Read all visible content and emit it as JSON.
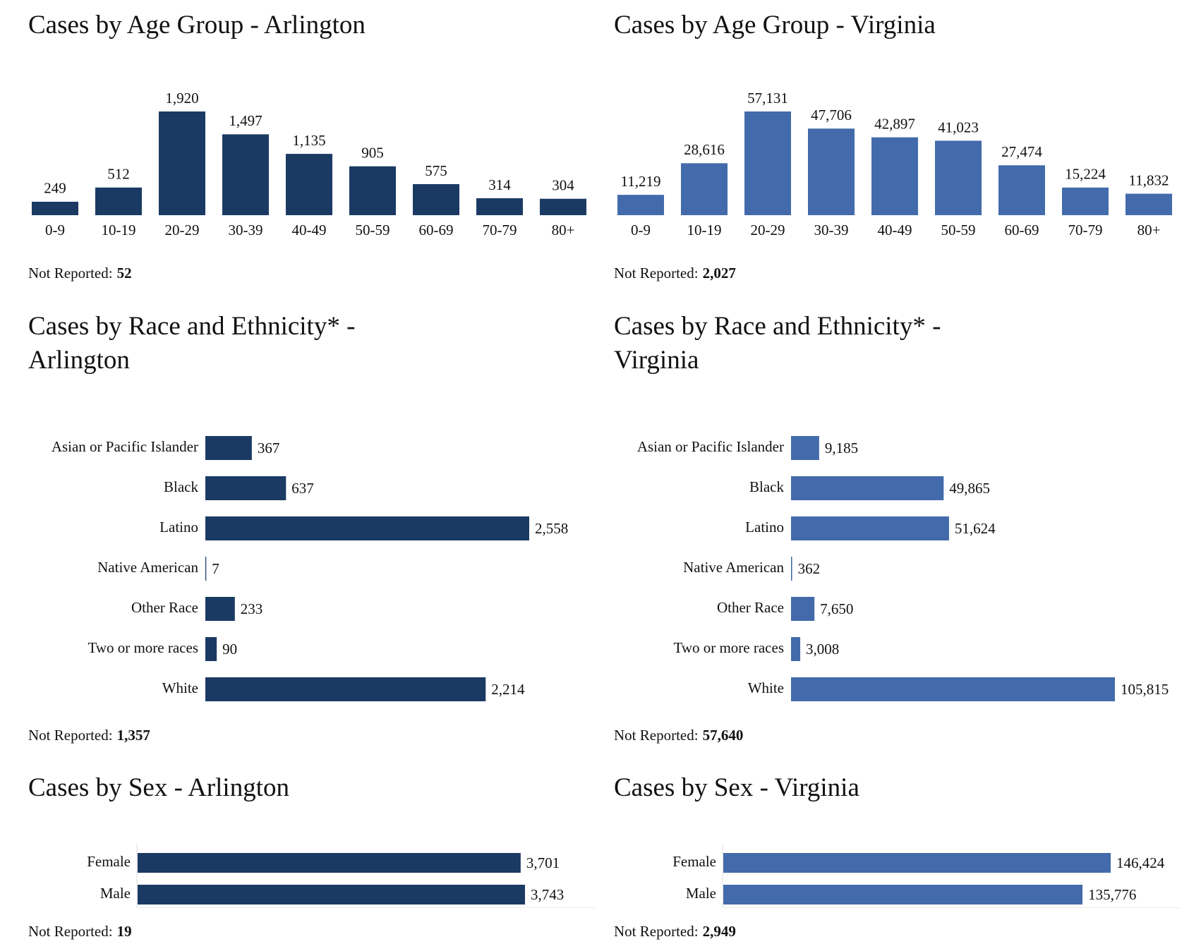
{
  "chart_data": [
    {
      "type": "bar",
      "title": "Cases by Age Group - Arlington",
      "color": "#1b3a63",
      "categories": [
        "0-9",
        "10-19",
        "20-29",
        "30-39",
        "40-49",
        "50-59",
        "60-69",
        "70-79",
        "80+"
      ],
      "values": [
        249,
        512,
        1920,
        1497,
        1135,
        905,
        575,
        314,
        304
      ],
      "value_labels": [
        "249",
        "512",
        "1,920",
        "1,497",
        "1,135",
        "905",
        "575",
        "314",
        "304"
      ],
      "not_reported": {
        "label": "Not Reported:",
        "value": 52,
        "value_label": "52"
      }
    },
    {
      "type": "bar",
      "title": "Cases by Age Group - Virginia",
      "color": "#436bab",
      "categories": [
        "0-9",
        "10-19",
        "20-29",
        "30-39",
        "40-49",
        "50-59",
        "60-69",
        "70-79",
        "80+"
      ],
      "values": [
        11219,
        28616,
        57131,
        47706,
        42897,
        41023,
        27474,
        15224,
        11832
      ],
      "value_labels": [
        "11,219",
        "28,616",
        "57,131",
        "47,706",
        "42,897",
        "41,023",
        "27,474",
        "15,224",
        "11,832"
      ],
      "not_reported": {
        "label": "Not Reported:",
        "value": 2027,
        "value_label": "2,027"
      }
    },
    {
      "type": "barh",
      "title": "Cases by Race and Ethnicity* - Arlington",
      "color": "#1b3a63",
      "categories": [
        "Asian or Pacific Islander",
        "Black",
        "Latino",
        "Native American",
        "Other Race",
        "Two or more races",
        "White"
      ],
      "values": [
        367,
        637,
        2558,
        7,
        233,
        90,
        2214
      ],
      "value_labels": [
        "367",
        "637",
        "2,558",
        "7",
        "233",
        "90",
        "2,214"
      ],
      "not_reported": {
        "label": "Not Reported:",
        "value": 1357,
        "value_label": "1,357"
      }
    },
    {
      "type": "barh",
      "title": "Cases by Race and Ethnicity* - Virginia",
      "color": "#436bab",
      "categories": [
        "Asian or Pacific Islander",
        "Black",
        "Latino",
        "Native American",
        "Other Race",
        "Two or more races",
        "White"
      ],
      "values": [
        9185,
        49865,
        51624,
        362,
        7650,
        3008,
        105815
      ],
      "value_labels": [
        "9,185",
        "49,865",
        "51,624",
        "362",
        "7,650",
        "3,008",
        "105,815"
      ],
      "not_reported": {
        "label": "Not Reported:",
        "value": 57640,
        "value_label": "57,640"
      }
    },
    {
      "type": "barh",
      "title": "Cases by Sex - Arlington",
      "color": "#1b3a63",
      "categories": [
        "Female",
        "Male"
      ],
      "values": [
        3701,
        3743
      ],
      "value_labels": [
        "3,701",
        "3,743"
      ],
      "not_reported": {
        "label": "Not Reported:",
        "value": 19,
        "value_label": "19"
      }
    },
    {
      "type": "barh",
      "title": "Cases by Sex - Virginia",
      "color": "#436bab",
      "categories": [
        "Female",
        "Male"
      ],
      "values": [
        146424,
        135776
      ],
      "value_labels": [
        "146,424",
        "135,776"
      ],
      "not_reported": {
        "label": "Not Reported:",
        "value": 2949,
        "value_label": "2,949"
      }
    }
  ]
}
